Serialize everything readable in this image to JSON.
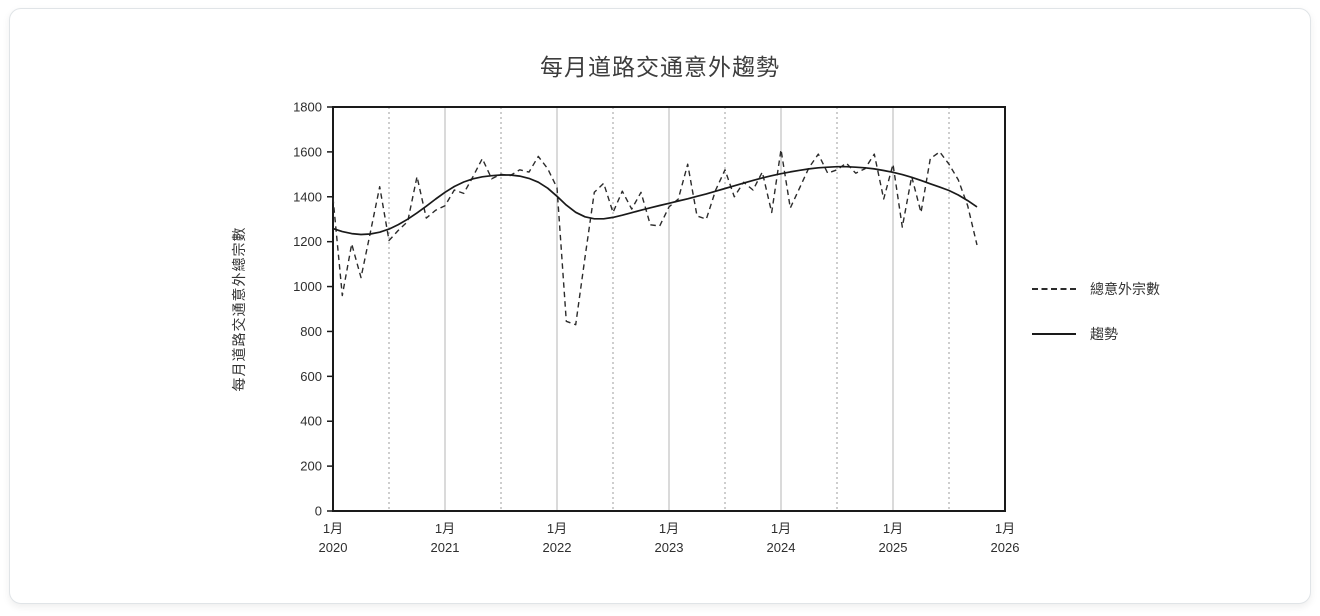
{
  "colors": {
    "axis": "#1a1a1a",
    "series_dashed": "#2b2b2b",
    "series_solid": "#1a1a1a",
    "grid_solid": "#b5b5b5",
    "grid_dashed": "#9e9e9e",
    "title_text": "#3d3d3d",
    "tick_text": "#2e2e2e",
    "card_border": "#e0e4e7"
  },
  "chart_data": {
    "type": "line",
    "title": "每月道路交通意外趨勢",
    "ylabel": "每月道路交通意外總宗數",
    "xlabel": "",
    "ylim": [
      0,
      1800
    ],
    "yticks": [
      0,
      200,
      400,
      600,
      800,
      1000,
      1200,
      1400,
      1600,
      1800
    ],
    "x_axis_total_months": 72,
    "x_ticks": [
      {
        "line1": "1月",
        "line2": "2020"
      },
      {
        "line1": "1月",
        "line2": "2021"
      },
      {
        "line1": "1月",
        "line2": "2022"
      },
      {
        "line1": "1月",
        "line2": "2023"
      },
      {
        "line1": "1月",
        "line2": "2024"
      },
      {
        "line1": "1月",
        "line2": "2025"
      },
      {
        "line1": "1月",
        "line2": "2026"
      }
    ],
    "grid": {
      "horizontal": "off",
      "vertical_solid": "every January",
      "vertical_dashed": "every July"
    },
    "legend_position": "right",
    "legend": [
      {
        "label": "總意外宗數",
        "style": "dashed"
      },
      {
        "label": "趨勢",
        "style": "solid"
      }
    ],
    "data_start": "2020-01",
    "frequency": "monthly",
    "series": [
      {
        "name": "總意外宗數",
        "style": "dashed",
        "values": [
          1395,
          960,
          1190,
          1040,
          1240,
          1445,
          1205,
          1250,
          1290,
          1490,
          1305,
          1340,
          1360,
          1430,
          1415,
          1490,
          1570,
          1480,
          1500,
          1495,
          1520,
          1510,
          1580,
          1525,
          1440,
          845,
          830,
          1130,
          1420,
          1460,
          1330,
          1425,
          1345,
          1420,
          1275,
          1270,
          1355,
          1390,
          1545,
          1315,
          1300,
          1430,
          1520,
          1400,
          1465,
          1430,
          1510,
          1330,
          1610,
          1350,
          1440,
          1530,
          1590,
          1505,
          1520,
          1550,
          1505,
          1525,
          1590,
          1390,
          1545,
          1265,
          1490,
          1330,
          1570,
          1600,
          1545,
          1475,
          1360,
          1185
        ]
      },
      {
        "name": "趨勢",
        "style": "solid",
        "values": [
          1258,
          1245,
          1236,
          1232,
          1234,
          1242,
          1256,
          1276,
          1300,
          1328,
          1358,
          1390,
          1420,
          1446,
          1466,
          1480,
          1489,
          1494,
          1497,
          1497,
          1492,
          1482,
          1465,
          1438,
          1402,
          1363,
          1331,
          1311,
          1302,
          1302,
          1308,
          1318,
          1329,
          1340,
          1351,
          1361,
          1371,
          1381,
          1391,
          1402,
          1413,
          1425,
          1437,
          1449,
          1461,
          1473,
          1484,
          1494,
          1503,
          1511,
          1518,
          1524,
          1529,
          1532,
          1534,
          1534,
          1532,
          1529,
          1524,
          1517,
          1509,
          1499,
          1487,
          1473,
          1458,
          1443,
          1428,
          1408,
          1383,
          1355
        ]
      }
    ]
  }
}
